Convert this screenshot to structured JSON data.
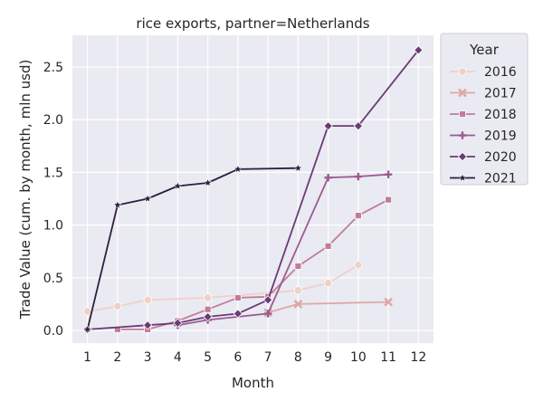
{
  "chart_data": {
    "type": "line",
    "title": "rice exports, partner=Netherlands",
    "xlabel": "Month",
    "ylabel": "Trade Value (cum. by month, mln usd)",
    "x_ticks": [
      1,
      2,
      3,
      4,
      5,
      6,
      7,
      8,
      9,
      10,
      11,
      12
    ],
    "y_ticks": [
      "0.0",
      "0.5",
      "1.0",
      "1.5",
      "2.0",
      "2.5"
    ],
    "xlim": [
      0.5,
      12.5
    ],
    "ylim": [
      -0.12,
      2.8
    ],
    "grid": true,
    "background": "#eaeaf2",
    "legend": {
      "title": "Year",
      "placement": "outside-right"
    },
    "series": [
      {
        "name": "2016",
        "color": "#efd1c6",
        "marker": "circle",
        "points": [
          [
            1,
            0.18
          ],
          [
            2,
            0.23
          ],
          [
            3,
            0.29
          ],
          [
            5,
            0.31
          ],
          [
            8,
            0.38
          ],
          [
            9,
            0.45
          ],
          [
            10,
            0.62
          ]
        ]
      },
      {
        "name": "2017",
        "color": "#dea9a4",
        "marker": "x",
        "points": [
          [
            7,
            0.17
          ],
          [
            8,
            0.25
          ],
          [
            11,
            0.27
          ]
        ]
      },
      {
        "name": "2018",
        "color": "#c07d9b",
        "marker": "square",
        "points": [
          [
            2,
            0.01
          ],
          [
            3,
            0.01
          ],
          [
            4,
            0.09
          ],
          [
            5,
            0.2
          ],
          [
            6,
            0.31
          ],
          [
            7,
            0.32
          ],
          [
            8,
            0.61
          ],
          [
            9,
            0.8
          ],
          [
            10,
            1.09
          ],
          [
            11,
            1.24
          ]
        ]
      },
      {
        "name": "2019",
        "color": "#9b5c8f",
        "marker": "plus",
        "points": [
          [
            4,
            0.05
          ],
          [
            5,
            0.1
          ],
          [
            7,
            0.16
          ],
          [
            9,
            1.45
          ],
          [
            10,
            1.46
          ],
          [
            11,
            1.48
          ]
        ]
      },
      {
        "name": "2020",
        "color": "#6b3b74",
        "marker": "diamond",
        "points": [
          [
            1,
            0.01
          ],
          [
            3,
            0.05
          ],
          [
            4,
            0.07
          ],
          [
            5,
            0.13
          ],
          [
            6,
            0.16
          ],
          [
            7,
            0.29
          ],
          [
            9,
            1.94
          ],
          [
            10,
            1.94
          ],
          [
            12,
            2.66
          ]
        ]
      },
      {
        "name": "2021",
        "color": "#2d1e3e",
        "marker": "star",
        "points": [
          [
            1,
            0.01
          ],
          [
            2,
            1.19
          ],
          [
            3,
            1.25
          ],
          [
            4,
            1.37
          ],
          [
            5,
            1.4
          ],
          [
            6,
            1.53
          ],
          [
            8,
            1.54
          ]
        ]
      }
    ]
  }
}
